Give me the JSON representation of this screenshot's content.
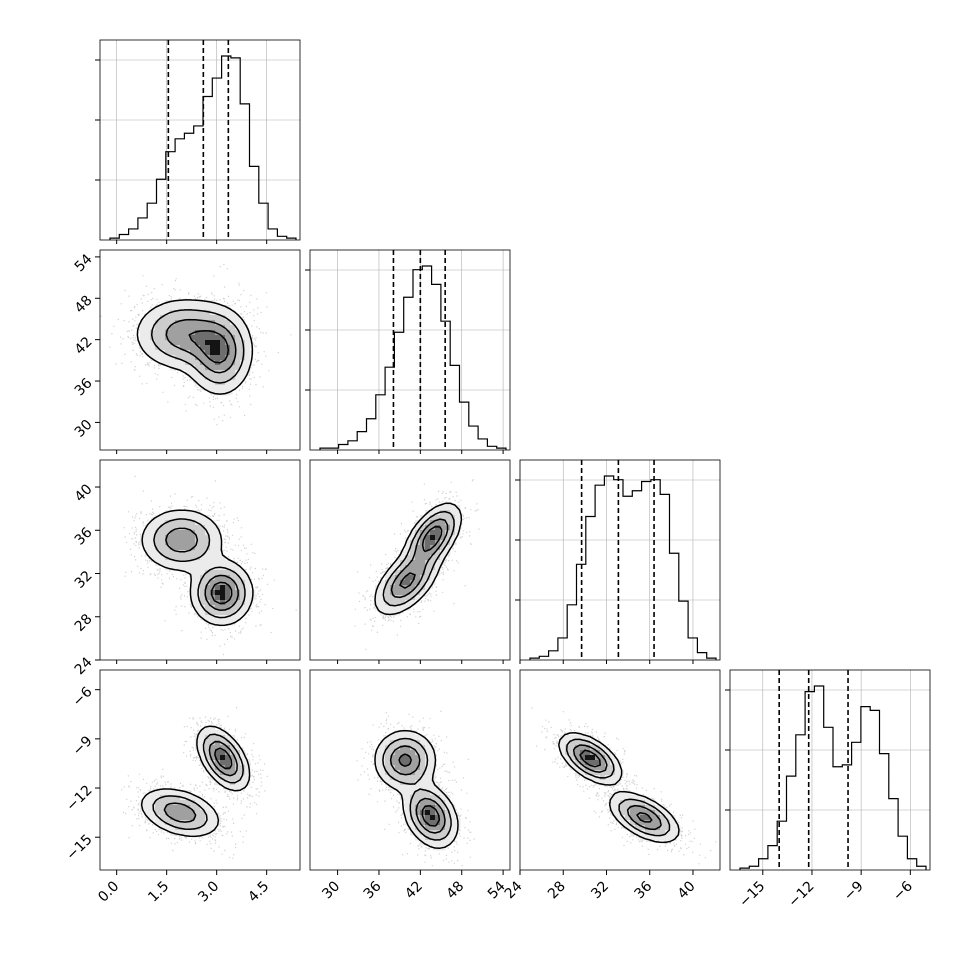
{
  "chart_data": {
    "type": "corner",
    "params": [
      {
        "range": [
          -0.5,
          5.5
        ],
        "ticks": [
          "0.0",
          "1.5",
          "3.0",
          "4.5"
        ],
        "tick_values": [
          0.0,
          1.5,
          3.0,
          4.5
        ],
        "quantiles": [
          1.55,
          2.6,
          3.35
        ]
      },
      {
        "range": [
          26.0,
          55.0
        ],
        "ticks": [
          "30",
          "36",
          "42",
          "48",
          "54"
        ],
        "tick_values": [
          30,
          36,
          42,
          48,
          54
        ],
        "quantiles": [
          38.1,
          42.0,
          45.6
        ]
      },
      {
        "range": [
          24.0,
          42.5
        ],
        "ticks": [
          "24",
          "28",
          "32",
          "36",
          "40"
        ],
        "tick_values": [
          24,
          28,
          32,
          36,
          40
        ],
        "quantiles": [
          29.7,
          33.1,
          36.4
        ]
      },
      {
        "range": [
          -17.0,
          -4.8
        ],
        "ticks": [
          "−15",
          "−12",
          "−9",
          "−6"
        ],
        "tick_values": [
          -15,
          -12,
          -9,
          -6
        ],
        "quantiles": [
          -14.0,
          -12.2,
          -9.8
        ]
      }
    ],
    "histograms": [
      {
        "counts": [
          1,
          3,
          6,
          12,
          20,
          33,
          48,
          55,
          58,
          62,
          78,
          88,
          100,
          99,
          74,
          40,
          20,
          6,
          2,
          1
        ]
      },
      {
        "counts": [
          1,
          1,
          3,
          5,
          10,
          17,
          30,
          45,
          64,
          83,
          98,
          100,
          90,
          70,
          46,
          26,
          13,
          6,
          2,
          1
        ]
      },
      {
        "counts": [
          1,
          2,
          5,
          12,
          30,
          52,
          78,
          95,
          100,
          98,
          89,
          92,
          97,
          98,
          90,
          58,
          32,
          12,
          4,
          1
        ]
      },
      {
        "counts": [
          1,
          2,
          6,
          13,
          26,
          50,
          72,
          95,
          98,
          76,
          55,
          56,
          68,
          87,
          85,
          62,
          38,
          18,
          6,
          2
        ]
      }
    ],
    "panels": [
      {
        "row": 1,
        "col": 0,
        "blobs": [
          {
            "cx": 2.05,
            "cy": 42.8,
            "sx": 0.75,
            "sy": 2.6,
            "rho": 0.0,
            "w": 0.55
          },
          {
            "cx": 3.1,
            "cy": 40.0,
            "sx": 0.48,
            "sy": 3.0,
            "rho": 0.0,
            "w": 0.45
          }
        ]
      },
      {
        "row": 2,
        "col": 0,
        "blobs": [
          {
            "cx": 1.95,
            "cy": 35.1,
            "sx": 0.62,
            "sy": 1.45,
            "rho": 0.0,
            "w": 0.5
          },
          {
            "cx": 3.15,
            "cy": 30.2,
            "sx": 0.45,
            "sy": 1.45,
            "rho": 0.0,
            "w": 0.5
          }
        ]
      },
      {
        "row": 2,
        "col": 1,
        "blobs": [
          {
            "cx": 40.0,
            "cy": 31.2,
            "sx": 2.3,
            "sy": 1.5,
            "rho": 0.55,
            "w": 0.5
          },
          {
            "cx": 43.8,
            "cy": 35.4,
            "sx": 2.0,
            "sy": 1.5,
            "rho": 0.55,
            "w": 0.5
          }
        ]
      },
      {
        "row": 3,
        "col": 0,
        "blobs": [
          {
            "cx": 1.9,
            "cy": -13.5,
            "sx": 0.6,
            "sy": 0.75,
            "rho": -0.35,
            "w": 0.5
          },
          {
            "cx": 3.2,
            "cy": -10.2,
            "sx": 0.38,
            "sy": 0.95,
            "rho": -0.5,
            "w": 0.5
          }
        ]
      },
      {
        "row": 3,
        "col": 1,
        "blobs": [
          {
            "cx": 39.8,
            "cy": -10.3,
            "sx": 2.2,
            "sy": 0.9,
            "rho": 0.0,
            "w": 0.5
          },
          {
            "cx": 43.5,
            "cy": -13.7,
            "sx": 1.9,
            "sy": 0.95,
            "rho": -0.3,
            "w": 0.5
          }
        ]
      },
      {
        "row": 3,
        "col": 2,
        "blobs": [
          {
            "cx": 30.5,
            "cy": -10.2,
            "sx": 1.4,
            "sy": 0.75,
            "rho": -0.55,
            "w": 0.5
          },
          {
            "cx": 35.5,
            "cy": -13.8,
            "sx": 1.6,
            "sy": 0.75,
            "rho": -0.55,
            "w": 0.5
          }
        ]
      }
    ],
    "colors": {
      "density": "#000000",
      "scatter": "#000000",
      "quantile_line": "#000000",
      "grid": "#b0b0b0",
      "frame": "#000000"
    },
    "title": "",
    "xlabel": "",
    "ylabel": "",
    "grid": true,
    "legend": "none"
  }
}
